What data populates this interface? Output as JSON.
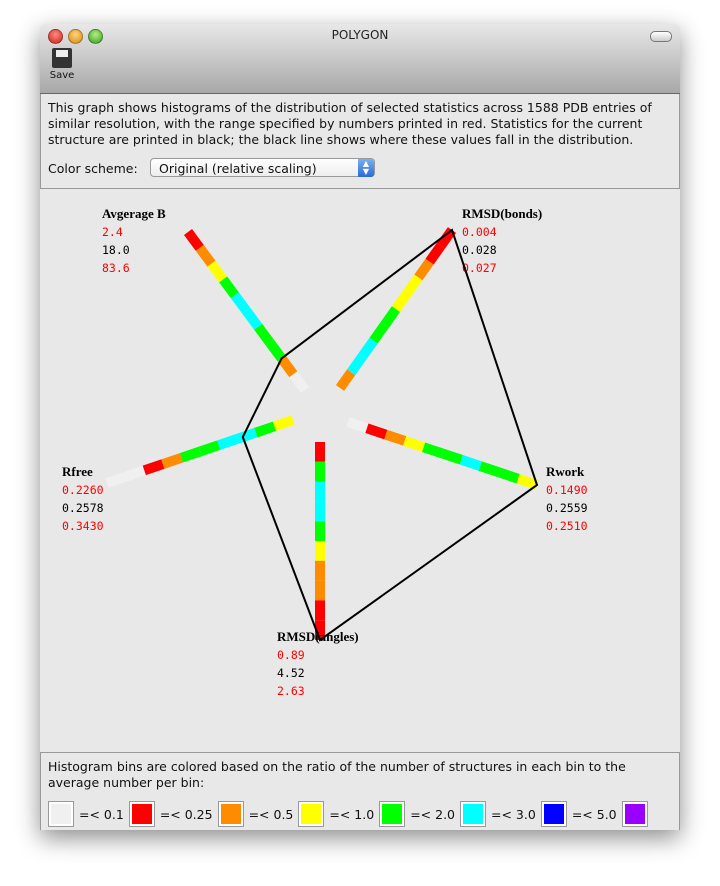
{
  "window": {
    "title": "POLYGON"
  },
  "toolbar": {
    "save_label": "Save"
  },
  "description": "This graph shows histograms of the distribution of selected statistics across 1588 PDB entries of similar resolution, with the range specified by numbers printed in red.  Statistics for the current structure are printed in black; the black line shows where these values fall in the distribution.",
  "color_scheme": {
    "label": "Color scheme:",
    "selected": "Original (relative scaling)"
  },
  "legend": {
    "text": "Histogram bins are colored based on the ratio of the number of structures in each bin to the average number per bin:",
    "items": [
      {
        "color": "#f0f0f0",
        "label": "=< 0.1"
      },
      {
        "color": "#ff0000",
        "label": "=< 0.25"
      },
      {
        "color": "#ff8c00",
        "label": "=< 0.5"
      },
      {
        "color": "#ffff00",
        "label": "=< 1.0"
      },
      {
        "color": "#00ff00",
        "label": "=< 2.0"
      },
      {
        "color": "#00ffff",
        "label": "=< 3.0"
      },
      {
        "color": "#0000ff",
        "label": "=< 5.0"
      },
      {
        "color": "#9900ff",
        "label": ""
      }
    ]
  },
  "chart_data": {
    "type": "radar-histogram",
    "bin_color_key": {
      "W": "#f0f0f0",
      "R": "#ff0000",
      "O": "#ff8c00",
      "Y": "#ffff00",
      "G": "#00ff00",
      "C": "#00ffff"
    },
    "axes": [
      {
        "name": "Avgerage B",
        "min": "2.4",
        "current": "18.0",
        "max": "83.6",
        "bins": [
          "W",
          "O",
          "G",
          "G",
          "C",
          "C",
          "G",
          "Y",
          "O",
          "R"
        ],
        "current_fraction": 0.2
      },
      {
        "name": "RMSD(bonds)",
        "min": "0.004",
        "current": "0.028",
        "max": "0.027",
        "bins": [
          "O",
          "C",
          "C",
          "G",
          "G",
          "Y",
          "Y",
          "O",
          "R",
          "R"
        ],
        "current_fraction": 1.0
      },
      {
        "name": "Rwork",
        "min": "0.1490",
        "current": "0.2559",
        "max": "0.2510",
        "bins": [
          "W",
          "R",
          "O",
          "Y",
          "G",
          "G",
          "C",
          "G",
          "G",
          "Y"
        ],
        "current_fraction": 1.0
      },
      {
        "name": "RMSD(angles)",
        "min": "0.89",
        "current": "4.52",
        "max": "2.63",
        "bins": [
          "R",
          "G",
          "C",
          "C",
          "G",
          "Y",
          "O",
          "O",
          "R",
          "R"
        ],
        "current_fraction": 1.0
      },
      {
        "name": "Rfree",
        "min": "0.2260",
        "current": "0.2578",
        "max": "0.3430",
        "bins": [
          "Y",
          "G",
          "C",
          "C",
          "G",
          "G",
          "O",
          "R",
          "W",
          "W"
        ],
        "current_fraction": 0.27
      }
    ]
  }
}
